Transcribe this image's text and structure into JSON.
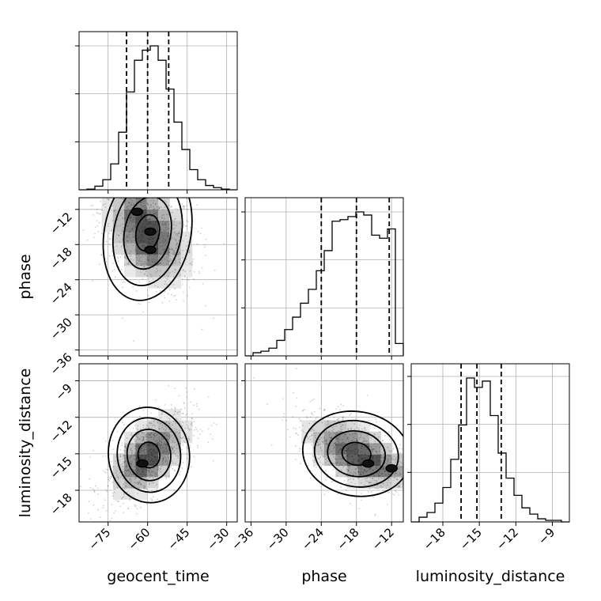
{
  "chart_data": {
    "type": "corner",
    "parameters": [
      "geocent_time",
      "phase",
      "luminosity_distance"
    ],
    "grid": true,
    "axes": {
      "geocent_time": {
        "range": [
          -86,
          -26
        ],
        "ticks": [
          -75,
          -60,
          -45,
          -30
        ]
      },
      "phase": {
        "range": [
          -37,
          -10
        ],
        "ticks": [
          -36,
          -30,
          -24,
          -18,
          -12
        ]
      },
      "luminosity_distance": {
        "range": [
          -20.6,
          -7.6
        ],
        "ticks": [
          -18,
          -15,
          -12,
          -9
        ]
      }
    },
    "marginals": {
      "geocent_time": {
        "quantiles": [
          -68.0,
          -60.0,
          -52.0
        ],
        "bin_edges": [
          -86,
          -83,
          -80,
          -77,
          -74,
          -71,
          -68,
          -65,
          -62,
          -59,
          -56,
          -53,
          -50,
          -47,
          -44,
          -41,
          -38,
          -35,
          -32,
          -29,
          -26
        ],
        "counts": [
          0.0,
          0.005,
          0.025,
          0.07,
          0.18,
          0.4,
          0.68,
          0.9,
          0.97,
          1.0,
          0.9,
          0.7,
          0.47,
          0.28,
          0.14,
          0.07,
          0.03,
          0.015,
          0.005,
          0.0
        ]
      },
      "phase": {
        "quantiles": [
          -24.0,
          -18.0,
          -12.4
        ],
        "bin_edges": [
          -37,
          -35.65,
          -34.3,
          -32.95,
          -31.6,
          -30.25,
          -28.9,
          -27.55,
          -26.2,
          -24.85,
          -23.5,
          -22.15,
          -20.8,
          -19.45,
          -18.1,
          -16.75,
          -15.4,
          -14.05,
          -12.7,
          -11.35,
          -10
        ],
        "counts": [
          0.0,
          0.02,
          0.03,
          0.05,
          0.1,
          0.17,
          0.25,
          0.34,
          0.43,
          0.55,
          0.68,
          0.87,
          0.88,
          0.9,
          0.93,
          0.91,
          0.78,
          0.76,
          0.82,
          0.08
        ]
      },
      "luminosity_distance": {
        "quantiles": [
          -16.5,
          -15.2,
          -13.2
        ],
        "bin_edges": [
          -20.6,
          -19.95,
          -19.3,
          -18.65,
          -18.0,
          -17.35,
          -16.7,
          -16.05,
          -15.4,
          -14.75,
          -14.1,
          -13.45,
          -12.8,
          -12.15,
          -11.5,
          -10.85,
          -10.2,
          -9.55,
          -8.9,
          -8.25,
          -7.6
        ],
        "counts": [
          0.0,
          0.03,
          0.06,
          0.12,
          0.22,
          0.4,
          0.62,
          0.92,
          0.86,
          0.9,
          0.68,
          0.44,
          0.28,
          0.17,
          0.09,
          0.05,
          0.02,
          0.01,
          0.01,
          0.0
        ]
      }
    },
    "joint": [
      {
        "x": "geocent_time",
        "y": "phase",
        "center": [
          -60,
          -16
        ],
        "spread": [
          8,
          4.5
        ],
        "correlation": -0.35,
        "modes": [
          [
            -64,
            -12.4
          ],
          [
            -59,
            -15.8
          ],
          [
            -59,
            -18.9
          ]
        ]
      },
      {
        "x": "geocent_time",
        "y": "luminosity_distance",
        "center": [
          -59.5,
          -15.1
        ],
        "spread": [
          7.5,
          1.7
        ],
        "correlation": 0.55,
        "modes": [
          [
            -62,
            -15.8
          ]
        ]
      },
      {
        "x": "phase",
        "y": "luminosity_distance",
        "center": [
          -18,
          -15.0
        ],
        "spread": [
          4.5,
          1.5
        ],
        "correlation": -0.55,
        "modes": [
          [
            -12,
            -16.2
          ],
          [
            -16,
            -15.8
          ]
        ]
      }
    ]
  },
  "labels": {
    "x_geocent_time": "geocent_time",
    "x_phase": "phase",
    "x_luminosity_distance": "luminosity_distance",
    "y_phase": "phase",
    "y_luminosity_distance": "luminosity_distance"
  }
}
